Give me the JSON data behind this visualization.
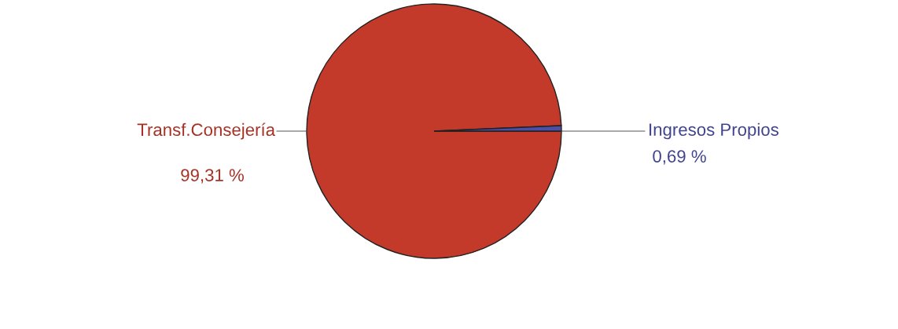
{
  "chart_data": {
    "type": "pie",
    "categories": [
      "Transf.Consejería",
      "Ingresos Propios"
    ],
    "values": [
      99.31,
      0.69
    ],
    "colors": [
      "#c33a2b",
      "#4b4fa8"
    ],
    "value_labels": [
      "99,31 %",
      "0,69 %"
    ]
  }
}
